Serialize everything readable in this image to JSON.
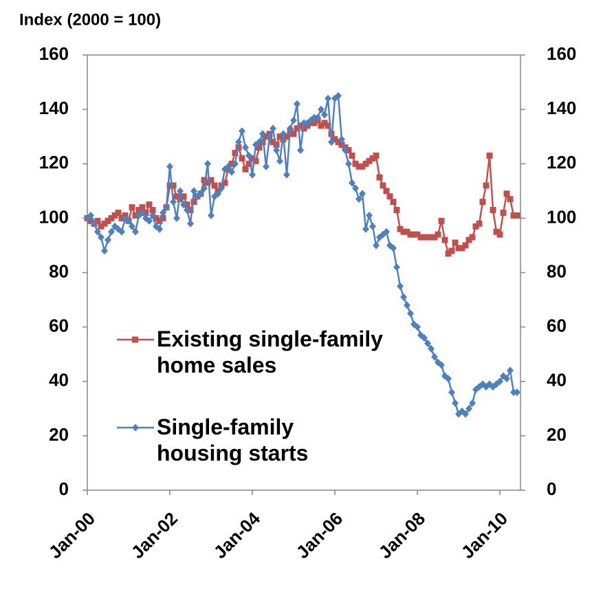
{
  "chart_data": {
    "type": "line",
    "y_label": "Index (2000 = 100)",
    "categories": [
      "Jan-00",
      null,
      null,
      null,
      null,
      null,
      null,
      null,
      null,
      null,
      null,
      null,
      null,
      null,
      null,
      null,
      null,
      null,
      null,
      null,
      null,
      null,
      null,
      null,
      "Jan-02",
      null,
      null,
      null,
      null,
      null,
      null,
      null,
      null,
      null,
      null,
      null,
      null,
      null,
      null,
      null,
      null,
      null,
      null,
      null,
      null,
      null,
      null,
      null,
      "Jan-04",
      null,
      null,
      null,
      null,
      null,
      null,
      null,
      null,
      null,
      null,
      null,
      null,
      null,
      null,
      null,
      null,
      null,
      null,
      null,
      null,
      null,
      null,
      null,
      "Jan-06",
      null,
      null,
      null,
      null,
      null,
      null,
      null,
      null,
      null,
      null,
      null,
      null,
      null,
      null,
      null,
      null,
      null,
      null,
      null,
      null,
      null,
      null,
      null,
      "Jan-08",
      null,
      null,
      null,
      null,
      null,
      null,
      null,
      null,
      null,
      null,
      null,
      null,
      null,
      null,
      null,
      null,
      null,
      null,
      null,
      null,
      null,
      null,
      null,
      "Jan-10",
      null,
      null,
      null,
      null,
      null
    ],
    "series": [
      {
        "name": "Existing single-family home sales",
        "color": "#c0504d",
        "marker": "square",
        "values": [
          100,
          99,
          98,
          99,
          97,
          98,
          99,
          100,
          101,
          102,
          100,
          101,
          99,
          104,
          101,
          103,
          104,
          102,
          105,
          103,
          100,
          99,
          100,
          104,
          112,
          112,
          108,
          107,
          108,
          105,
          103,
          106,
          108,
          109,
          114,
          113,
          114,
          112,
          110,
          112,
          113,
          118,
          120,
          124,
          126,
          122,
          118,
          120,
          122,
          121,
          126,
          128,
          130,
          131,
          128,
          127,
          130,
          129,
          130,
          132,
          131,
          133,
          134,
          133,
          134,
          135,
          135,
          136,
          134,
          135,
          134,
          131,
          129,
          128,
          127,
          126,
          125,
          123,
          120,
          119,
          119,
          120,
          121,
          122,
          123,
          115,
          112,
          110,
          108,
          106,
          103,
          96,
          95,
          95,
          94,
          94,
          94,
          93,
          93,
          93,
          93,
          93,
          94,
          99,
          92,
          87,
          88,
          91,
          89,
          89,
          90,
          92,
          93,
          97,
          98,
          106,
          112,
          123,
          103,
          95,
          94,
          102,
          109,
          107,
          101,
          101
        ]
      },
      {
        "name": "Single-family housing starts",
        "color": "#4f81bd",
        "marker": "diamond",
        "values": [
          100,
          101,
          98,
          95,
          93,
          88,
          92,
          95,
          97,
          96,
          95,
          100,
          99,
          97,
          95,
          101,
          102,
          100,
          99,
          101,
          97,
          96,
          102,
          104,
          119,
          106,
          100,
          110,
          105,
          103,
          98,
          110,
          108,
          109,
          111,
          120,
          101,
          108,
          109,
          111,
          118,
          119,
          117,
          120,
          128,
          132,
          126,
          123,
          116,
          127,
          128,
          131,
          119,
          130,
          133,
          125,
          121,
          131,
          116,
          133,
          136,
          142,
          125,
          135,
          135,
          136,
          137,
          137,
          140,
          138,
          144,
          128,
          144,
          145,
          129,
          125,
          120,
          113,
          111,
          107,
          109,
          96,
          101,
          97,
          90,
          93,
          94,
          95,
          90,
          89,
          82,
          75,
          71,
          68,
          65,
          61,
          60,
          57,
          56,
          54,
          52,
          49,
          47,
          46,
          42,
          41,
          36,
          32,
          28,
          29,
          28,
          30,
          32,
          37,
          38,
          39,
          38,
          39,
          38,
          39,
          40,
          42,
          41,
          44,
          36,
          36
        ]
      }
    ],
    "ylim": [
      0,
      160
    ],
    "yticks": [
      0,
      20,
      40,
      60,
      80,
      100,
      120,
      140,
      160
    ],
    "y2lim": [
      0,
      160
    ],
    "y2ticks": [
      0,
      20,
      40,
      60,
      80,
      100,
      120,
      140,
      160
    ],
    "grid": false
  }
}
